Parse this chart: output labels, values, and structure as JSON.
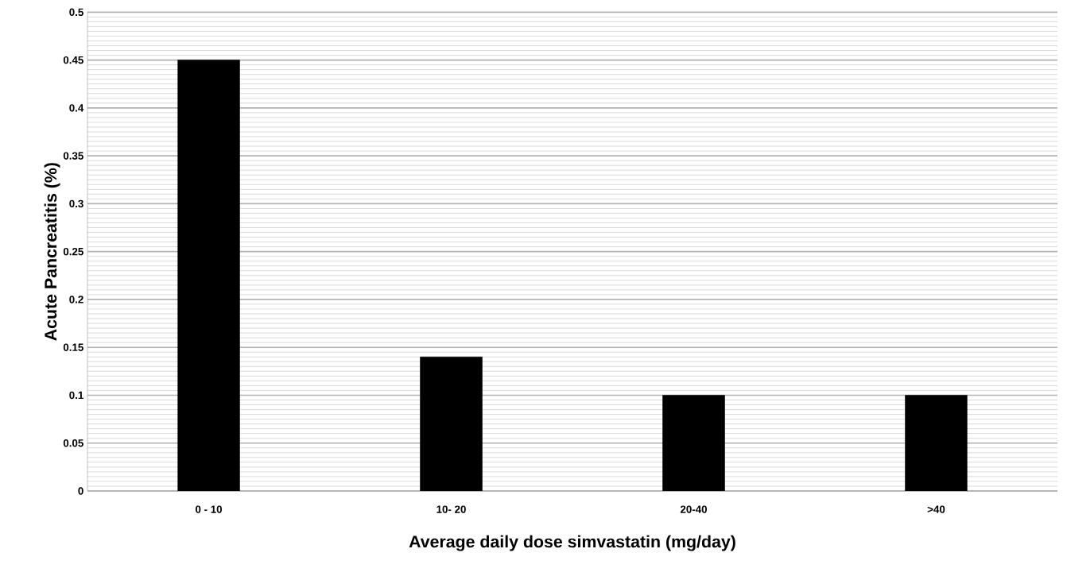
{
  "chart_data": {
    "type": "bar",
    "xlabel": "Average daily dose simvastatin (mg/day)",
    "ylabel": "Acute Pancreatitis (%)",
    "categories": [
      "0 - 10",
      "10- 20",
      "20-40",
      ">40"
    ],
    "values": [
      0.45,
      0.14,
      0.1,
      0.1
    ],
    "color": "#000000",
    "ylim": [
      0,
      0.5
    ],
    "yticks": [
      0,
      0.05,
      0.1,
      0.15,
      0.2,
      0.25,
      0.3,
      0.35,
      0.4,
      0.45,
      0.5
    ],
    "grid": "y"
  }
}
